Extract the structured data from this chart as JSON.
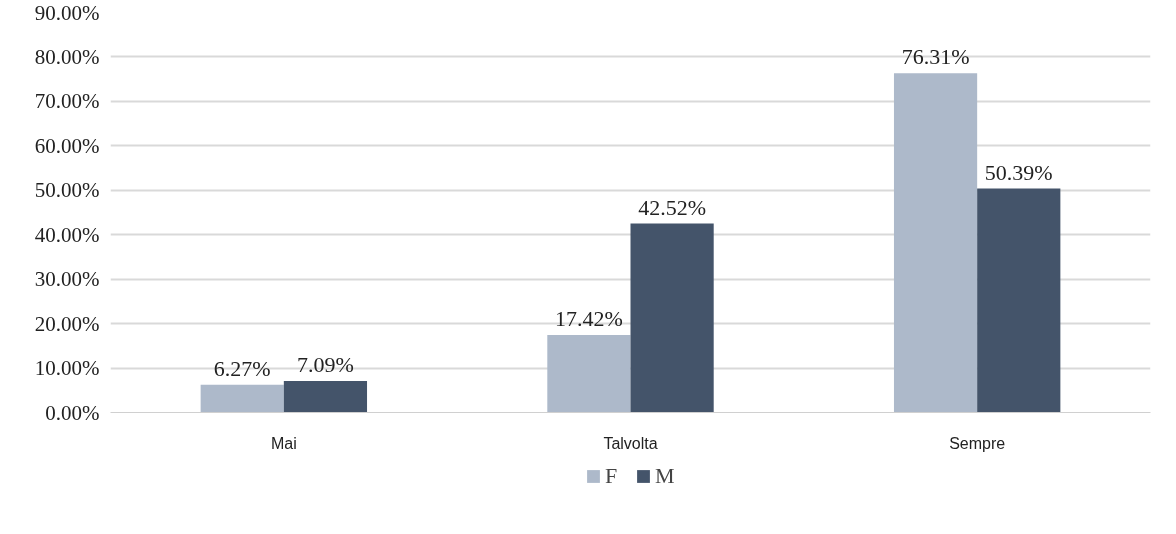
{
  "chart_data": {
    "type": "bar",
    "categories": [
      "Mai",
      "Talvolta",
      "Sempre"
    ],
    "series": [
      {
        "name": "F",
        "color": "#adb9ca",
        "values": [
          6.27,
          17.42,
          76.31
        ],
        "value_labels": [
          "6.27%",
          "17.42%",
          "76.31%"
        ]
      },
      {
        "name": "M",
        "color": "#44546a",
        "values": [
          7.09,
          42.52,
          50.39
        ],
        "value_labels": [
          "7.09%",
          "42.52%",
          "50.39%"
        ]
      }
    ],
    "ylim": [
      0,
      90
    ],
    "yticks": [
      {
        "value": 0,
        "label": "0.00%"
      },
      {
        "value": 10,
        "label": "10.00%"
      },
      {
        "value": 20,
        "label": "20.00%"
      },
      {
        "value": 30,
        "label": "30.00%"
      },
      {
        "value": 40,
        "label": "40.00%"
      },
      {
        "value": 50,
        "label": "50.00%"
      },
      {
        "value": 60,
        "label": "60.00%"
      },
      {
        "value": 70,
        "label": "70.00%"
      },
      {
        "value": 80,
        "label": "80.00%"
      },
      {
        "value": 90,
        "label": "90.00%"
      }
    ],
    "grid": "y",
    "legend": "bottom"
  }
}
